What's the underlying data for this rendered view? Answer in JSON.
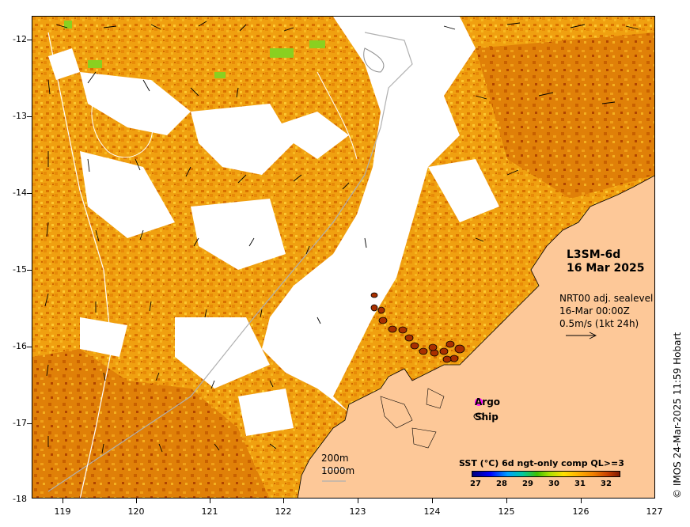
{
  "map": {
    "product": "L3SM-6d",
    "date": "16 Mar 2025",
    "lat_ticks": [
      "-12",
      "-13",
      "-14",
      "-15",
      "-16",
      "-17",
      "-18"
    ],
    "lon_ticks": [
      "119",
      "120",
      "121",
      "122",
      "123",
      "124",
      "125",
      "126",
      "127"
    ],
    "lat_range": [
      -18,
      -11.75
    ],
    "lon_range": [
      118.6,
      127
    ],
    "land_color": "#fdc898",
    "cloud_color": "#ffffff",
    "sst_palette": [
      "#00007a",
      "#0000ff",
      "#00a0ff",
      "#00c8a0",
      "#40c000",
      "#a8e000",
      "#ffe000",
      "#ffb000",
      "#f08000",
      "#c84000",
      "#801800"
    ]
  },
  "currents": {
    "line1": "NRT00 adj. sealevel",
    "line2": "16-Mar 00:00Z",
    "line3": "0.5m/s (1kt 24h)"
  },
  "markers": {
    "argo_label": "Argo",
    "ship_label": "Ship",
    "argo_color": "#ff00ff"
  },
  "depth": {
    "contour_200": "200m",
    "contour_1000": "1000m"
  },
  "colorbar": {
    "title": "SST (°C) 6d ngt-only comp QL>=3",
    "ticks": [
      "27",
      "28",
      "29",
      "30",
      "31",
      "32"
    ]
  },
  "credit": "© IMOS 24-Mar-2025 11:59 Hobart"
}
